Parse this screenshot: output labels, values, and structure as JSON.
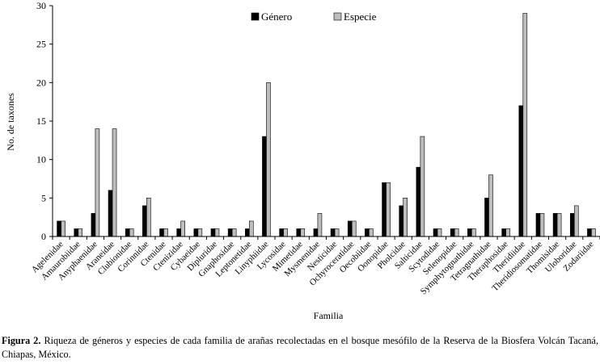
{
  "chart_data": {
    "type": "bar",
    "title": "",
    "xlabel": "Familia",
    "ylabel": "No. de taxones",
    "ylim": [
      0,
      30
    ],
    "yticks": [
      0,
      5,
      10,
      15,
      20,
      25,
      30
    ],
    "grid": false,
    "legend_position": "top-center",
    "categories": [
      "Agelenidae",
      "Amaurobiidae",
      "Anyphaenidae",
      "Araneidae",
      "Clubionidae",
      "Corinnidae",
      "Ctenidae",
      "Ctenizidae",
      "Cybaeidae",
      "Dipluridae",
      "Gnaphosidae",
      "Leptonetidae",
      "Linyphiidae",
      "Lycosidae",
      "Mimetidae",
      "Mysmenidae",
      "Nesticidae",
      "Ochyroceratidae",
      "Oecobiidae",
      "Oonopidae",
      "Pholcidae",
      "Salticidae",
      "Scytodidae",
      "Selenopidae",
      "Symphytognathidae",
      "Tetragnathidae",
      "Theraphosidae",
      "Theridiidae",
      "Theridiosomatidae",
      "Thomisidae",
      "Uloboridae",
      "Zodariidae"
    ],
    "series": [
      {
        "name": "Género",
        "color": "#000000",
        "values": [
          2,
          1,
          3,
          6,
          1,
          4,
          1,
          1,
          1,
          1,
          1,
          1,
          13,
          1,
          1,
          1,
          1,
          2,
          1,
          7,
          4,
          9,
          1,
          1,
          1,
          5,
          1,
          17,
          3,
          3,
          3,
          1
        ]
      },
      {
        "name": "Especie",
        "color": "#bdbdbd",
        "values": [
          2,
          1,
          14,
          14,
          1,
          5,
          1,
          2,
          1,
          1,
          1,
          2,
          20,
          1,
          1,
          3,
          1,
          2,
          1,
          7,
          5,
          13,
          1,
          1,
          1,
          8,
          1,
          29,
          3,
          3,
          4,
          1
        ]
      }
    ]
  },
  "caption": {
    "label": "Figura 2.",
    "text": " Riqueza de géneros y especies de cada familia de arañas recolectadas en el bosque mesófilo de la Reserva de la Biosfera Volcán Tacaná, Chiapas, México."
  }
}
